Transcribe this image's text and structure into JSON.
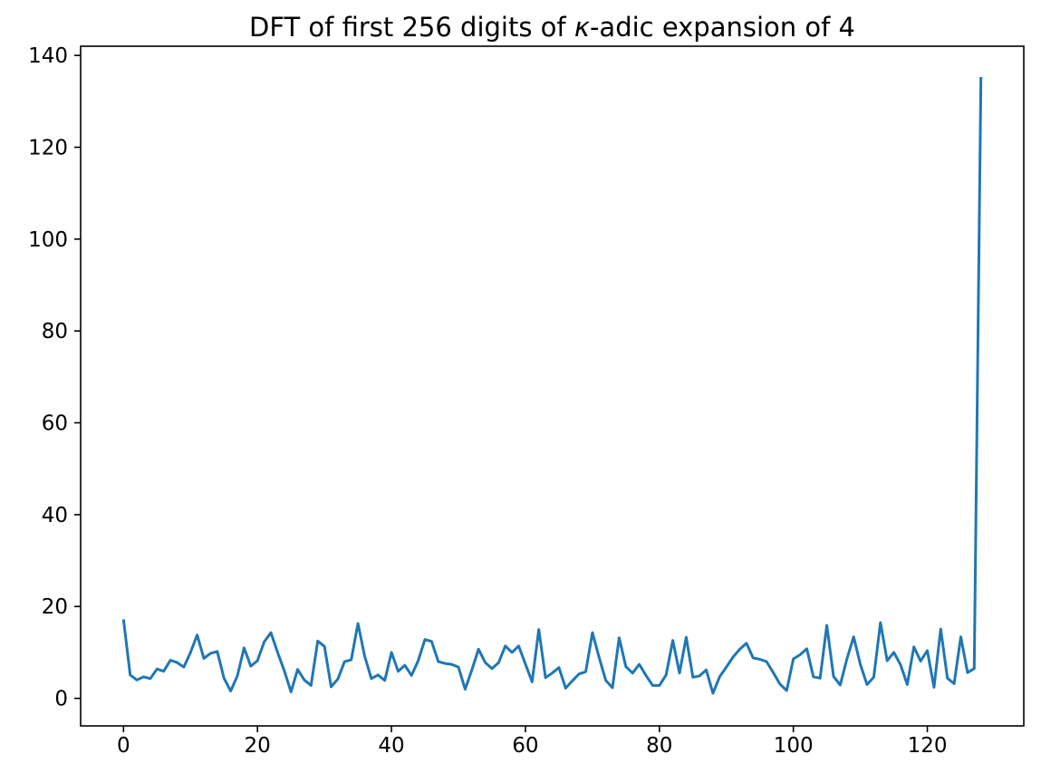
{
  "figure": {
    "background": "#ffffff"
  },
  "title": {
    "prefix": "DFT of first 256 digits of ",
    "kappa": "κ",
    "suffix": "-adic expansion of 4"
  },
  "chart_data": {
    "type": "line",
    "title": "DFT of first 256 digits of κ-adic expansion of 4",
    "xlabel": "",
    "ylabel": "",
    "x_start": 0,
    "x_step": 1,
    "values": [
      17.2,
      5.1,
      4.0,
      4.7,
      4.3,
      6.4,
      5.9,
      8.3,
      7.8,
      6.8,
      10.0,
      13.8,
      8.7,
      9.8,
      10.2,
      4.4,
      1.6,
      4.9,
      11.0,
      7.0,
      8.2,
      12.3,
      14.3,
      10.0,
      6.0,
      1.4,
      6.3,
      4.0,
      2.8,
      12.5,
      11.3,
      2.5,
      4.2,
      8.0,
      8.4,
      16.3,
      9.2,
      4.3,
      5.1,
      3.9,
      10.0,
      5.9,
      7.2,
      5.0,
      8.2,
      12.8,
      12.4,
      8.0,
      7.6,
      7.4,
      6.8,
      2.0,
      6.2,
      10.7,
      7.8,
      6.5,
      7.8,
      11.4,
      10.0,
      11.4,
      7.5,
      3.6,
      15.0,
      4.5,
      5.5,
      6.7,
      2.2,
      3.8,
      5.3,
      5.8,
      14.3,
      8.9,
      3.9,
      2.3,
      13.2,
      6.9,
      5.5,
      7.4,
      5.0,
      2.8,
      2.8,
      5.1,
      12.6,
      5.5,
      13.3,
      4.6,
      4.9,
      6.2,
      1.1,
      4.7,
      6.8,
      9.0,
      10.7,
      12.0,
      8.8,
      8.5,
      8.0,
      5.6,
      3.1,
      1.7,
      8.6,
      9.5,
      10.8,
      4.7,
      4.4,
      15.9,
      4.8,
      2.9,
      8.6,
      13.4,
      7.4,
      3.0,
      4.6,
      16.5,
      8.2,
      10.0,
      7.3,
      3.0,
      11.2,
      8.1,
      10.4,
      2.4,
      15.1,
      4.4,
      3.2,
      13.4,
      5.6,
      6.5,
      135.3
    ],
    "xticks": [
      0,
      20,
      40,
      60,
      80,
      100,
      120
    ],
    "yticks": [
      0,
      20,
      40,
      60,
      80,
      100,
      120,
      140
    ],
    "xlim": [
      -6.4,
      134.4
    ],
    "ylim": [
      -6.0,
      142.0
    ],
    "line_color": "#1f77b4",
    "axis_color": "#000000",
    "tick_label_color": "#000000",
    "grid": false,
    "legend": null
  }
}
